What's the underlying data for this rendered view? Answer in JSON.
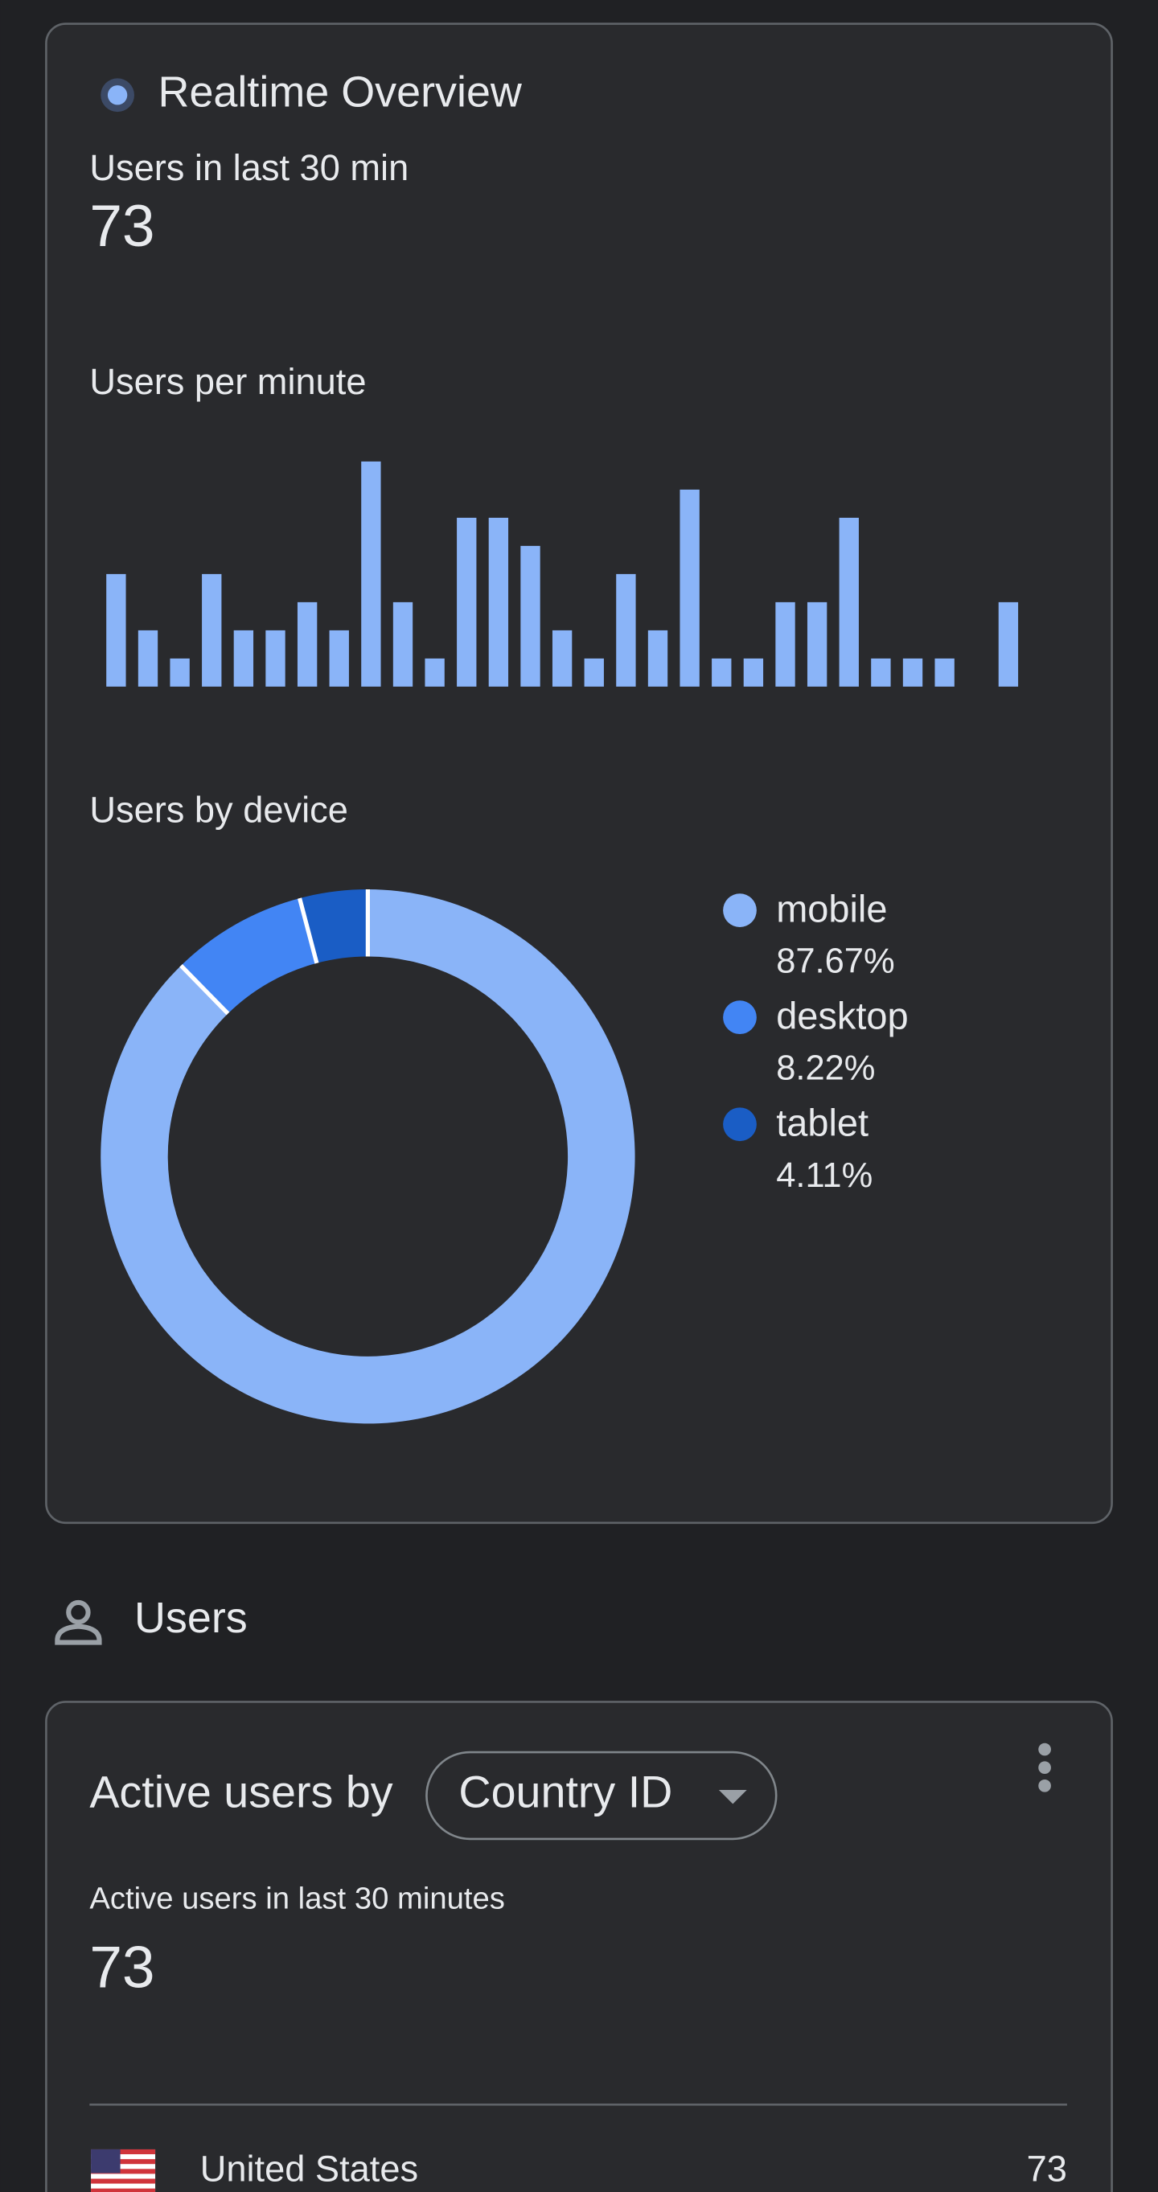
{
  "realtime": {
    "title": "Realtime Overview",
    "users_label": "Users in last 30 min",
    "users_value": 73
  },
  "chart_data": [
    {
      "type": "bar",
      "title": "Users per minute",
      "values": [
        4,
        2,
        1,
        4,
        2,
        2,
        3,
        2,
        8,
        3,
        1,
        6,
        6,
        5,
        2,
        1,
        4,
        2,
        7,
        1,
        1,
        3,
        3,
        6,
        1,
        1,
        1,
        0,
        3
      ],
      "color": "#8ab4f8"
    },
    {
      "type": "pie",
      "title": "Users by device",
      "donut": true,
      "categories": [
        "mobile",
        "desktop",
        "tablet"
      ],
      "values": [
        87.67,
        8.22,
        4.11
      ],
      "value_labels": [
        "87.67%",
        "8.22%",
        "4.11%"
      ],
      "colors": [
        "#8ab4f8",
        "#4285f4",
        "#1a5dc5"
      ]
    }
  ],
  "users_section": {
    "heading": "Users",
    "card_title": "Active users by",
    "dimension": "Country ID",
    "metric_label": "Active users in last 30 minutes",
    "metric_value": 73,
    "rows": [
      {
        "country": "United States",
        "value": 73
      }
    ]
  }
}
